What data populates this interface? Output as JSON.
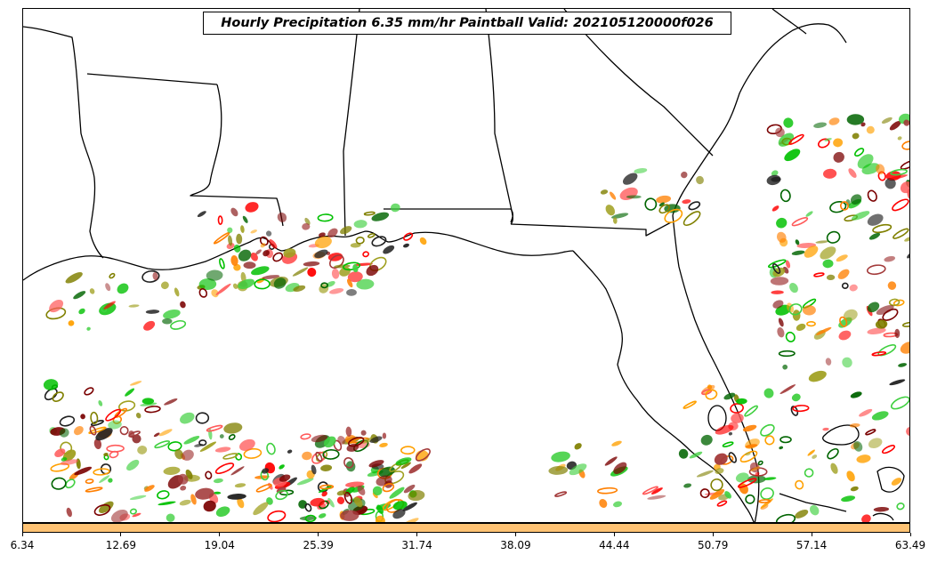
{
  "title": "Hourly Precipitation 6.35 mm/hr Paintball Valid: 202105120000f026",
  "colorbar": {
    "color": "#ffc374",
    "ticks": [
      "6.34",
      "12.69",
      "19.04",
      "25.39",
      "31.74",
      "38.09",
      "44.44",
      "50.79",
      "57.14",
      "63.49"
    ]
  },
  "map": {
    "boundary_color": "#000000",
    "member_colors": [
      "#7a0000",
      "#a33a3a",
      "#ff0000",
      "#ff5a5a",
      "#ff7f00",
      "#ffa000",
      "#808000",
      "#a0a020",
      "#006400",
      "#00c000",
      "#40d040",
      "#202020"
    ]
  }
}
